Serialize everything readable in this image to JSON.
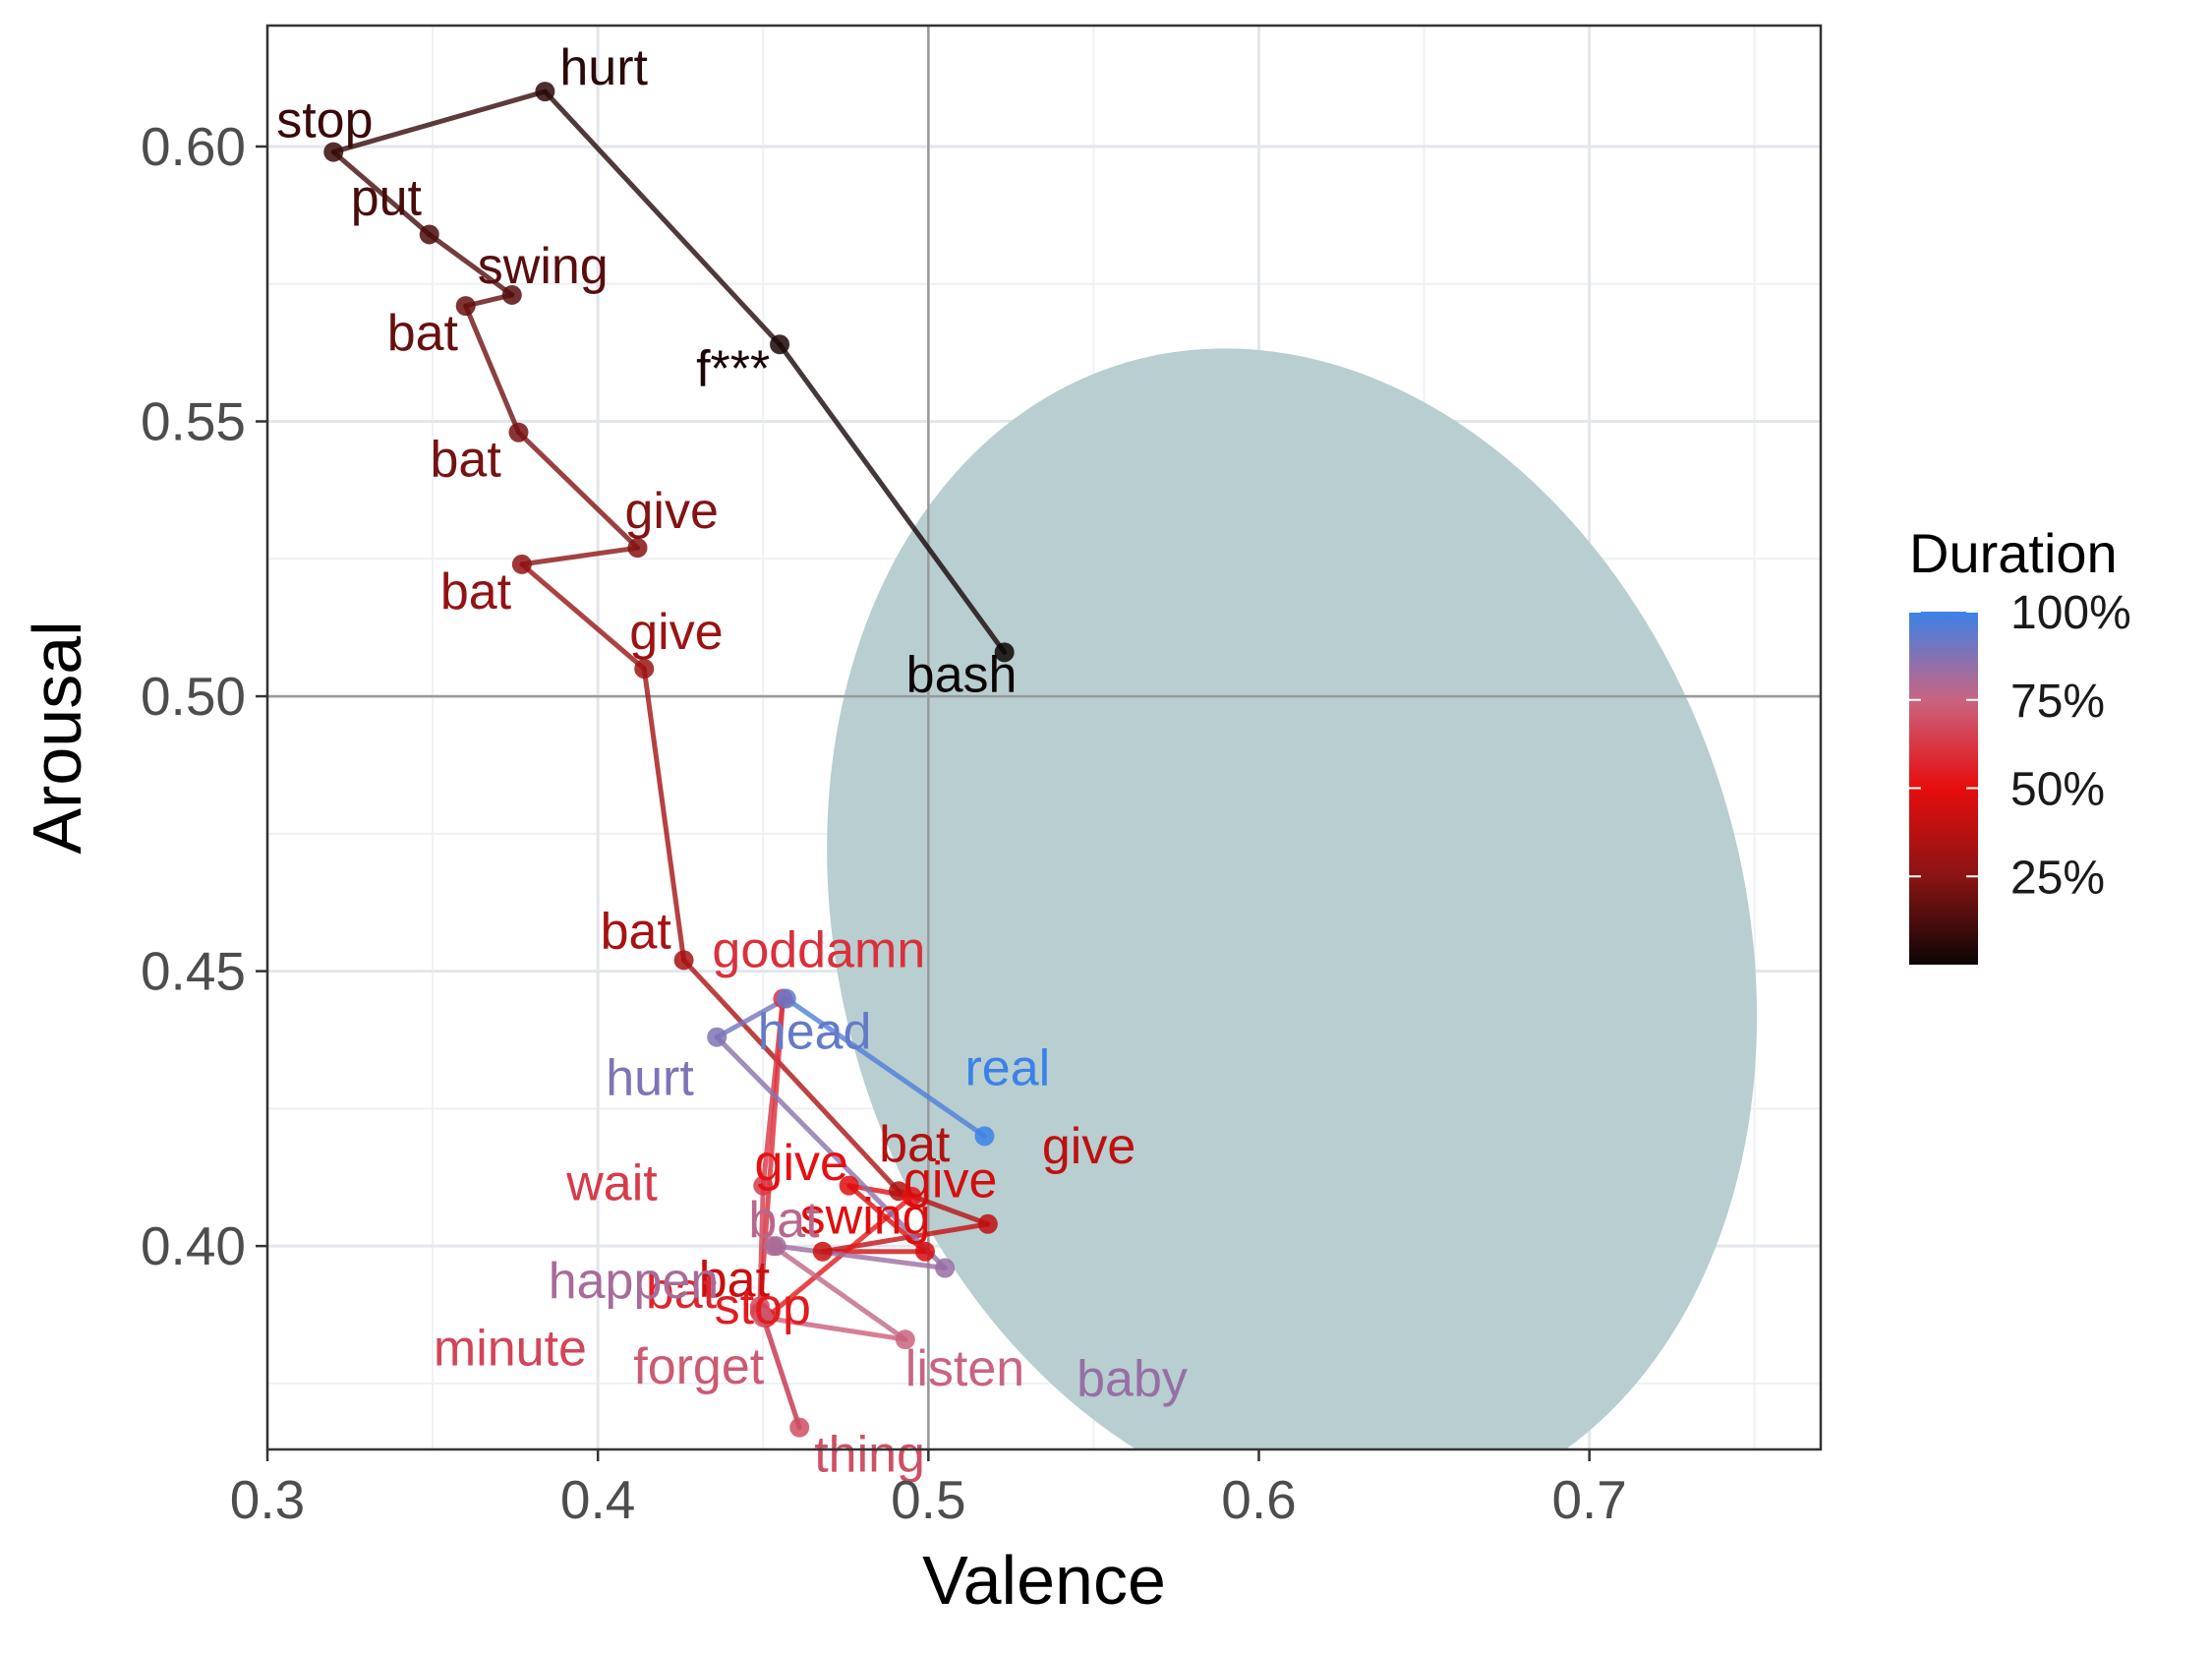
{
  "chart_data": {
    "type": "line",
    "xlabel": "Valence",
    "ylabel": "Arousal",
    "xlim": [
      0.3,
      0.77
    ],
    "ylim": [
      0.363,
      0.622
    ],
    "x_ticks": [
      0.3,
      0.4,
      0.5,
      0.6,
      0.7
    ],
    "x_tick_labels": [
      "0.3",
      "0.4",
      "0.5",
      "0.6",
      "0.7"
    ],
    "y_ticks": [
      0.4,
      0.45,
      0.5,
      0.55,
      0.6
    ],
    "y_tick_labels": [
      "0.40",
      "0.45",
      "0.50",
      "0.55",
      "0.60"
    ],
    "grid": true,
    "reference_lines": {
      "x": 0.5,
      "y": 0.5
    },
    "ellipse": {
      "cx": 0.61,
      "cy": 0.457,
      "rx": 0.137,
      "ry": 0.108,
      "rotation_deg": -16,
      "color": "#b8ced0"
    },
    "legend": {
      "title": "Duration",
      "position": "right",
      "labels": [
        "100%",
        "75%",
        "50%",
        "25%"
      ],
      "values": [
        1.0,
        0.75,
        0.5,
        0.25
      ]
    },
    "color_scale": [
      "#0d0505",
      "#8a1414",
      "#e60d0d",
      "#c96480",
      "#3b82e8"
    ],
    "points": [
      {
        "word": "bash",
        "x": 0.523,
        "y": 0.508,
        "t": 0.0
      },
      {
        "word": "f***",
        "x": 0.455,
        "y": 0.564,
        "t": 0.03
      },
      {
        "word": "hurt",
        "x": 0.384,
        "y": 0.61,
        "t": 0.06
      },
      {
        "word": "stop",
        "x": 0.32,
        "y": 0.599,
        "t": 0.09
      },
      {
        "word": "put",
        "x": 0.349,
        "y": 0.584,
        "t": 0.12
      },
      {
        "word": "swing",
        "x": 0.374,
        "y": 0.573,
        "t": 0.15
      },
      {
        "word": "bat",
        "x": 0.36,
        "y": 0.571,
        "t": 0.18
      },
      {
        "word": "bat",
        "x": 0.376,
        "y": 0.548,
        "t": 0.21
      },
      {
        "word": "give",
        "x": 0.412,
        "y": 0.527,
        "t": 0.24
      },
      {
        "word": "bat",
        "x": 0.377,
        "y": 0.524,
        "t": 0.27
      },
      {
        "word": "give",
        "x": 0.414,
        "y": 0.505,
        "t": 0.3
      },
      {
        "word": "bat",
        "x": 0.426,
        "y": 0.452,
        "t": 0.33
      },
      {
        "word": "bat",
        "x": 0.491,
        "y": 0.41,
        "t": 0.36
      },
      {
        "word": "give",
        "x": 0.518,
        "y": 0.404,
        "t": 0.39
      },
      {
        "word": "bat",
        "x": 0.468,
        "y": 0.399,
        "t": 0.42
      },
      {
        "word": "give",
        "x": 0.499,
        "y": 0.399,
        "t": 0.45
      },
      {
        "word": "swing",
        "x": 0.476,
        "y": 0.411,
        "t": 0.48
      },
      {
        "word": "give",
        "x": 0.495,
        "y": 0.409,
        "t": 0.51
      },
      {
        "word": "stop",
        "x": 0.451,
        "y": 0.387,
        "t": 0.54
      },
      {
        "word": "bat",
        "x": 0.449,
        "y": 0.388,
        "t": 0.57
      },
      {
        "word": "goddamn",
        "x": 0.456,
        "y": 0.445,
        "t": 0.6
      },
      {
        "word": "wait",
        "x": 0.45,
        "y": 0.411,
        "t": 0.63
      },
      {
        "word": "minute",
        "x": 0.449,
        "y": 0.389,
        "t": 0.66
      },
      {
        "word": "thing",
        "x": 0.461,
        "y": 0.367,
        "t": 0.69
      },
      {
        "word": "forget",
        "x": 0.45,
        "y": 0.387,
        "t": 0.72
      },
      {
        "word": "listen",
        "x": 0.493,
        "y": 0.383,
        "t": 0.75
      },
      {
        "word": "bat",
        "x": 0.453,
        "y": 0.4,
        "t": 0.78
      },
      {
        "word": "happen",
        "x": 0.454,
        "y": 0.4,
        "t": 0.81
      },
      {
        "word": "baby",
        "x": 0.505,
        "y": 0.396,
        "t": 0.84
      },
      {
        "word": "hurt",
        "x": 0.436,
        "y": 0.438,
        "t": 0.88
      },
      {
        "word": "head",
        "x": 0.457,
        "y": 0.445,
        "t": 0.93
      },
      {
        "word": "real",
        "x": 0.517,
        "y": 0.42,
        "t": 1.0
      }
    ]
  }
}
